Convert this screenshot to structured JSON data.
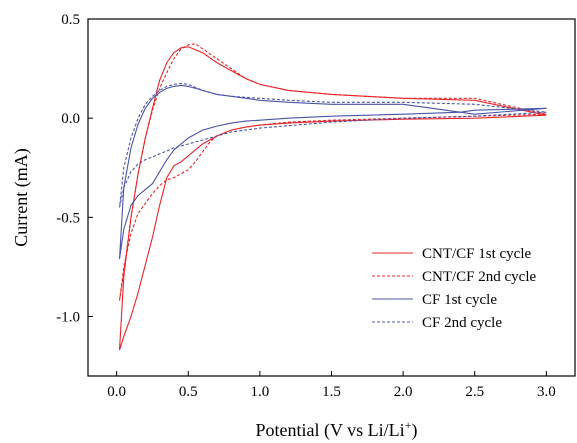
{
  "chart_data": {
    "type": "line",
    "xlabel_main": "Potential (V vs Li/Li",
    "xlabel_sup": "+",
    "xlabel_end": ")",
    "ylabel": "Current (mA)",
    "xlim": [
      -0.2,
      3.2
    ],
    "ylim": [
      -1.3,
      0.5
    ],
    "xticks": [
      0.0,
      0.5,
      1.0,
      1.5,
      2.0,
      2.5,
      3.0
    ],
    "xtick_labels": [
      "0.0",
      "0.5",
      "1.0",
      "1.5",
      "2.0",
      "2.5",
      "3.0"
    ],
    "yticks": [
      0.5,
      0.0,
      -0.5,
      -1.0
    ],
    "ytick_labels": [
      "0.5",
      "0.0",
      "-0.5",
      "-1.0"
    ],
    "grid": false,
    "legend_position": "lower-right",
    "series": [
      {
        "name": "CNT/CF 1st cycle",
        "color": "#e8262a",
        "dash": "solid",
        "x": [
          0.02,
          0.05,
          0.1,
          0.15,
          0.2,
          0.25,
          0.3,
          0.35,
          0.4,
          0.45,
          0.5,
          0.55,
          0.6,
          0.7,
          0.8,
          0.9,
          1.0,
          1.2,
          1.5,
          2.0,
          2.5,
          3.0,
          2.5,
          2.0,
          1.5,
          1.2,
          1.0,
          0.9,
          0.8,
          0.7,
          0.6,
          0.5,
          0.45,
          0.4,
          0.35,
          0.3,
          0.25,
          0.2,
          0.15,
          0.1,
          0.05,
          0.02
        ],
        "y": [
          -1.17,
          -1.1,
          -1.0,
          -0.88,
          -0.74,
          -0.6,
          -0.44,
          -0.3,
          -0.24,
          -0.22,
          -0.19,
          -0.16,
          -0.13,
          -0.09,
          -0.06,
          -0.045,
          -0.035,
          -0.025,
          -0.015,
          -0.005,
          0.0,
          0.015,
          0.09,
          0.1,
          0.12,
          0.14,
          0.17,
          0.2,
          0.24,
          0.28,
          0.33,
          0.36,
          0.355,
          0.33,
          0.28,
          0.19,
          0.05,
          -0.1,
          -0.28,
          -0.5,
          -0.8,
          -1.17
        ]
      },
      {
        "name": "CNT/CF 2nd cycle",
        "color": "#e8262a",
        "dash": "dashed",
        "x": [
          0.02,
          0.05,
          0.1,
          0.15,
          0.2,
          0.25,
          0.3,
          0.35,
          0.4,
          0.45,
          0.5,
          0.55,
          0.6,
          0.65,
          0.7,
          0.8,
          0.9,
          1.0,
          1.2,
          1.5,
          2.0,
          2.5,
          3.0,
          2.5,
          2.0,
          1.5,
          1.2,
          1.0,
          0.9,
          0.8,
          0.7,
          0.6,
          0.55,
          0.5,
          0.45,
          0.4,
          0.35,
          0.3,
          0.25,
          0.2,
          0.15,
          0.1,
          0.05,
          0.02
        ],
        "y": [
          -0.92,
          -0.75,
          -0.58,
          -0.48,
          -0.43,
          -0.38,
          -0.34,
          -0.31,
          -0.3,
          -0.28,
          -0.26,
          -0.22,
          -0.17,
          -0.12,
          -0.09,
          -0.06,
          -0.045,
          -0.035,
          -0.02,
          -0.01,
          0.0,
          0.01,
          0.02,
          0.1,
          0.1,
          0.12,
          0.14,
          0.17,
          0.2,
          0.25,
          0.3,
          0.35,
          0.375,
          0.37,
          0.35,
          0.3,
          0.23,
          0.15,
          0.04,
          -0.1,
          -0.28,
          -0.5,
          -0.78,
          -0.92
        ]
      },
      {
        "name": "CF 1st cycle",
        "color": "#4c54a8",
        "dash": "solid",
        "x": [
          0.02,
          0.05,
          0.1,
          0.15,
          0.2,
          0.25,
          0.3,
          0.35,
          0.4,
          0.5,
          0.6,
          0.7,
          0.8,
          0.9,
          1.0,
          1.2,
          1.5,
          2.0,
          2.4,
          2.5,
          3.0,
          2.5,
          2.0,
          1.5,
          1.2,
          1.0,
          0.8,
          0.7,
          0.6,
          0.5,
          0.45,
          0.4,
          0.35,
          0.3,
          0.25,
          0.2,
          0.15,
          0.1,
          0.05,
          0.02
        ],
        "y": [
          -0.71,
          -0.56,
          -0.44,
          -0.39,
          -0.36,
          -0.33,
          -0.27,
          -0.21,
          -0.16,
          -0.1,
          -0.06,
          -0.04,
          -0.025,
          -0.015,
          -0.01,
          0.0,
          0.01,
          0.02,
          0.03,
          0.04,
          0.05,
          0.02,
          0.07,
          0.07,
          0.08,
          0.09,
          0.11,
          0.12,
          0.14,
          0.16,
          0.165,
          0.16,
          0.15,
          0.13,
          0.1,
          0.05,
          -0.03,
          -0.15,
          -0.35,
          -0.71
        ]
      },
      {
        "name": "CF 2nd cycle",
        "color": "#4c54a8",
        "dash": "dashed",
        "x": [
          0.02,
          0.05,
          0.1,
          0.15,
          0.2,
          0.3,
          0.4,
          0.5,
          0.6,
          0.7,
          0.8,
          1.0,
          1.5,
          2.0,
          2.5,
          3.0,
          2.5,
          2.0,
          1.5,
          1.2,
          1.0,
          0.8,
          0.7,
          0.6,
          0.5,
          0.45,
          0.4,
          0.35,
          0.3,
          0.25,
          0.2,
          0.15,
          0.1,
          0.05,
          0.02
        ],
        "y": [
          -0.45,
          -0.35,
          -0.27,
          -0.23,
          -0.21,
          -0.18,
          -0.15,
          -0.13,
          -0.11,
          -0.09,
          -0.07,
          -0.05,
          -0.02,
          0.0,
          0.01,
          0.03,
          0.07,
          0.08,
          0.08,
          0.09,
          0.1,
          0.11,
          0.12,
          0.14,
          0.17,
          0.175,
          0.17,
          0.16,
          0.14,
          0.11,
          0.07,
          0.0,
          -0.1,
          -0.25,
          -0.45
        ]
      }
    ]
  }
}
